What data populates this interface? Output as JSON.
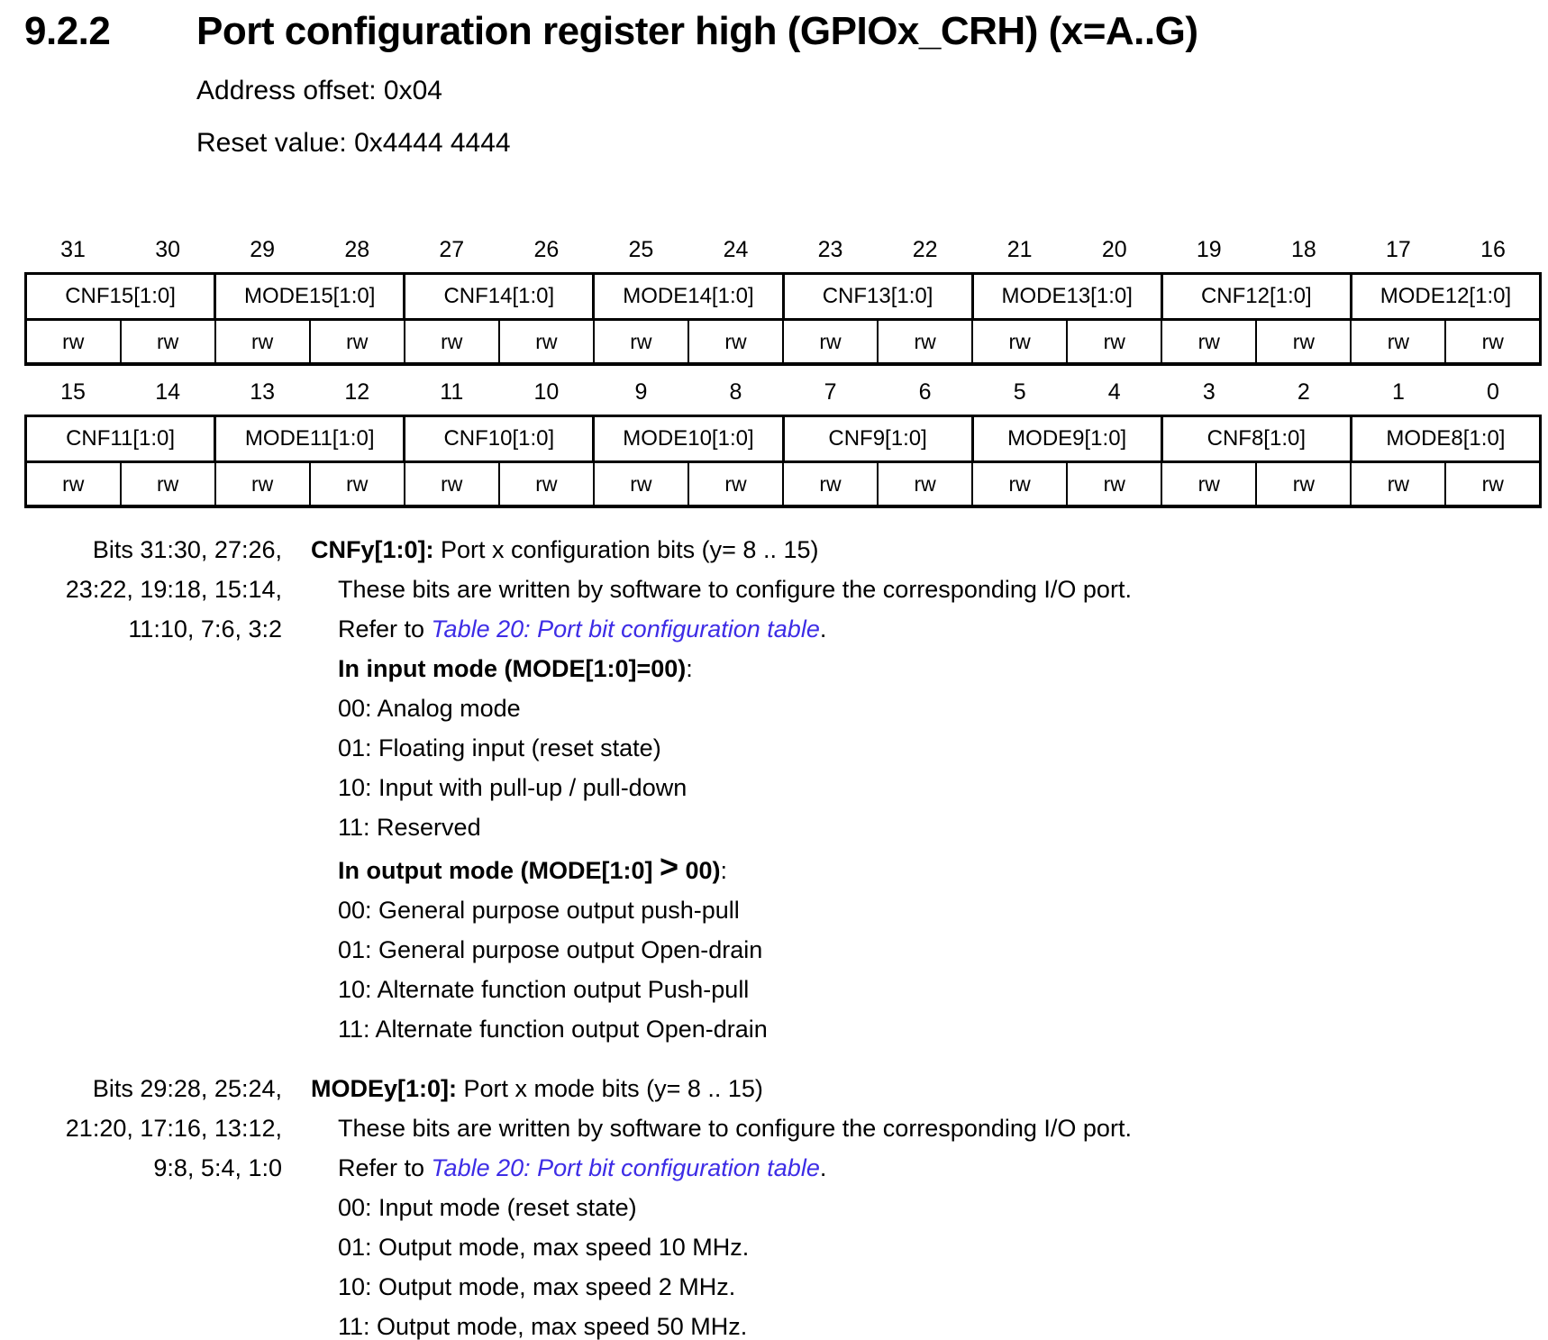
{
  "header": {
    "section_number": "9.2.2",
    "title": "Port configuration register high (GPIOx_CRH) (x=A..G)",
    "address_offset": "Address offset: 0x04",
    "reset_value": "Reset value: 0x4444 4444"
  },
  "register_table": {
    "groups": [
      {
        "bits": [
          "31",
          "30",
          "29",
          "28",
          "27",
          "26",
          "25",
          "24",
          "23",
          "22",
          "21",
          "20",
          "19",
          "18",
          "17",
          "16"
        ],
        "fields": [
          "CNF15[1:0]",
          "MODE15[1:0]",
          "CNF14[1:0]",
          "MODE14[1:0]",
          "CNF13[1:0]",
          "MODE13[1:0]",
          "CNF12[1:0]",
          "MODE12[1:0]"
        ],
        "access": [
          "rw",
          "rw",
          "rw",
          "rw",
          "rw",
          "rw",
          "rw",
          "rw",
          "rw",
          "rw",
          "rw",
          "rw",
          "rw",
          "rw",
          "rw",
          "rw"
        ]
      },
      {
        "bits": [
          "15",
          "14",
          "13",
          "12",
          "11",
          "10",
          "9",
          "8",
          "7",
          "6",
          "5",
          "4",
          "3",
          "2",
          "1",
          "0"
        ],
        "fields": [
          "CNF11[1:0]",
          "MODE11[1:0]",
          "CNF10[1:0]",
          "MODE10[1:0]",
          "CNF9[1:0]",
          "MODE9[1:0]",
          "CNF8[1:0]",
          "MODE8[1:0]"
        ],
        "access": [
          "rw",
          "rw",
          "rw",
          "rw",
          "rw",
          "rw",
          "rw",
          "rw",
          "rw",
          "rw",
          "rw",
          "rw",
          "rw",
          "rw",
          "rw",
          "rw"
        ]
      }
    ]
  },
  "descriptions": [
    {
      "bits_label_lines": [
        "Bits 31:30, 27:26,",
        "23:22, 19:18, 15:14,",
        "11:10, 7:6, 3:2"
      ],
      "term": "CNFy[1:0]:",
      "term_rest": " Port x configuration bits (y= 8 .. 15)",
      "lines": [
        {
          "text": "These bits are written by software to configure the corresponding I/O port."
        },
        {
          "prefix": "Refer to ",
          "link": "Table 20: Port bit configuration table",
          "suffix": "."
        },
        {
          "bold_pre": "In input mode (MODE[1:0]=00)",
          "suffix": ":"
        },
        {
          "text": "00: Analog mode"
        },
        {
          "text": "01: Floating input (reset state)"
        },
        {
          "text": "10: Input with pull-up / pull-down"
        },
        {
          "text": "11: Reserved"
        },
        {
          "bold_pre": "In output mode (MODE[1:0] ",
          "bold_gt": ">",
          "bold_post": " 00)",
          "suffix": ":"
        },
        {
          "text": "00: General purpose output push-pull"
        },
        {
          "text": "01: General purpose output Open-drain"
        },
        {
          "text": "10: Alternate function output Push-pull"
        },
        {
          "text": "11: Alternate function output Open-drain"
        }
      ]
    },
    {
      "bits_label_lines": [
        "Bits 29:28, 25:24,",
        "21:20, 17:16, 13:12,",
        "9:8, 5:4, 1:0"
      ],
      "term": "MODEy[1:0]:",
      "term_rest": " Port x mode bits (y= 8 .. 15)",
      "lines": [
        {
          "text": "These bits are written by software to configure the corresponding I/O port."
        },
        {
          "prefix": "Refer to ",
          "link": "Table 20: Port bit configuration table",
          "suffix": "."
        },
        {
          "text": "00: Input mode (reset state)"
        },
        {
          "text": "01: Output mode, max speed 10 MHz."
        },
        {
          "text": "10: Output mode, max speed 2 MHz."
        },
        {
          "text": "11: Output mode, max speed 50 MHz."
        }
      ]
    }
  ],
  "colors": {
    "text": "#000000",
    "link_blue": "#3d2ce6"
  }
}
